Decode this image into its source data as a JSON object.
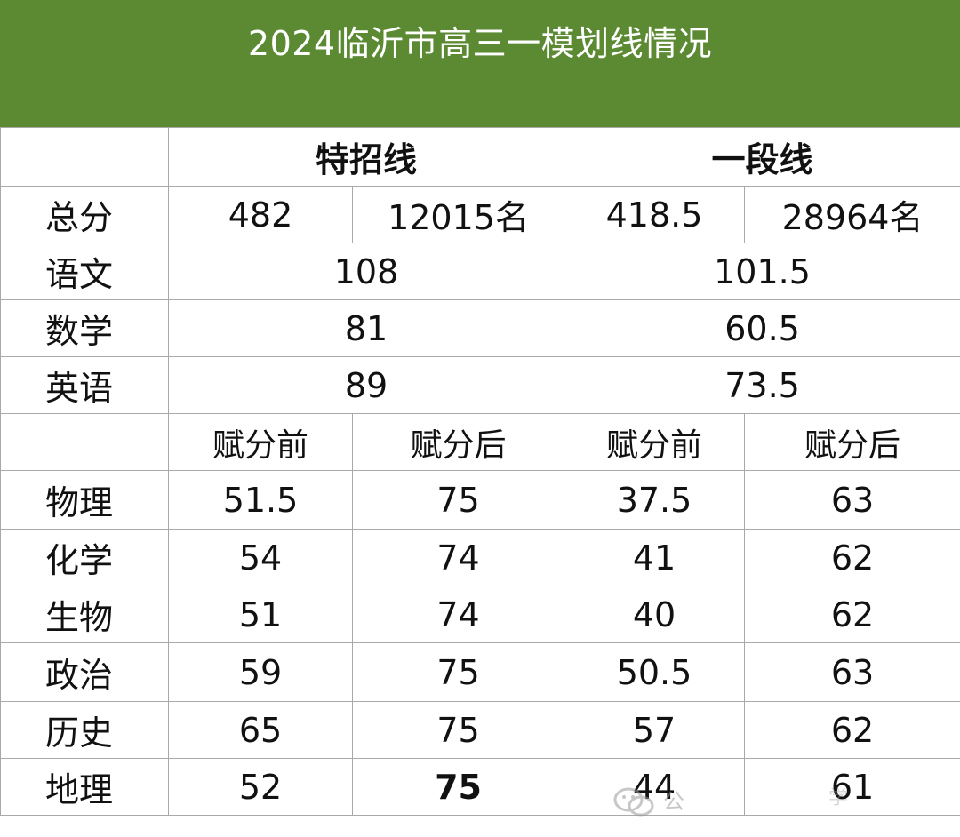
{
  "title": "2024临沂市高三一模划线情况",
  "groups": {
    "teshao": "特招线",
    "yiduan": "一段线"
  },
  "total": {
    "label": "总分",
    "teshao_score": "482",
    "teshao_rank": "12015名",
    "yiduan_score": "418.5",
    "yiduan_rank": "28964名"
  },
  "core": [
    {
      "subject": "语文",
      "teshao": "108",
      "yiduan": "101.5"
    },
    {
      "subject": "数学",
      "teshao": "81",
      "yiduan": "60.5"
    },
    {
      "subject": "英语",
      "teshao": "89",
      "yiduan": "73.5"
    }
  ],
  "sub_headers": {
    "before": "赋分前",
    "after": "赋分后"
  },
  "electives": [
    {
      "subject": "物理",
      "t_before": "51.5",
      "t_after": "75",
      "y_before": "37.5",
      "y_after": "63"
    },
    {
      "subject": "化学",
      "t_before": "54",
      "t_after": "74",
      "y_before": "41",
      "y_after": "62"
    },
    {
      "subject": "生物",
      "t_before": "51",
      "t_after": "74",
      "y_before": "40",
      "y_after": "62"
    },
    {
      "subject": "政治",
      "t_before": "59",
      "t_after": "75",
      "y_before": "50.5",
      "y_after": "63"
    },
    {
      "subject": "历史",
      "t_before": "65",
      "t_after": "75",
      "y_before": "57",
      "y_after": "62"
    },
    {
      "subject": "地理",
      "t_before": "52",
      "t_after": "75",
      "y_before": "44",
      "y_after": "61"
    }
  ],
  "watermark": {
    "icon": "wechat-icon",
    "text": "公",
    "text2": "学"
  },
  "colors": {
    "header_green": "#5b8a33",
    "grid": "#a9a9a9"
  }
}
